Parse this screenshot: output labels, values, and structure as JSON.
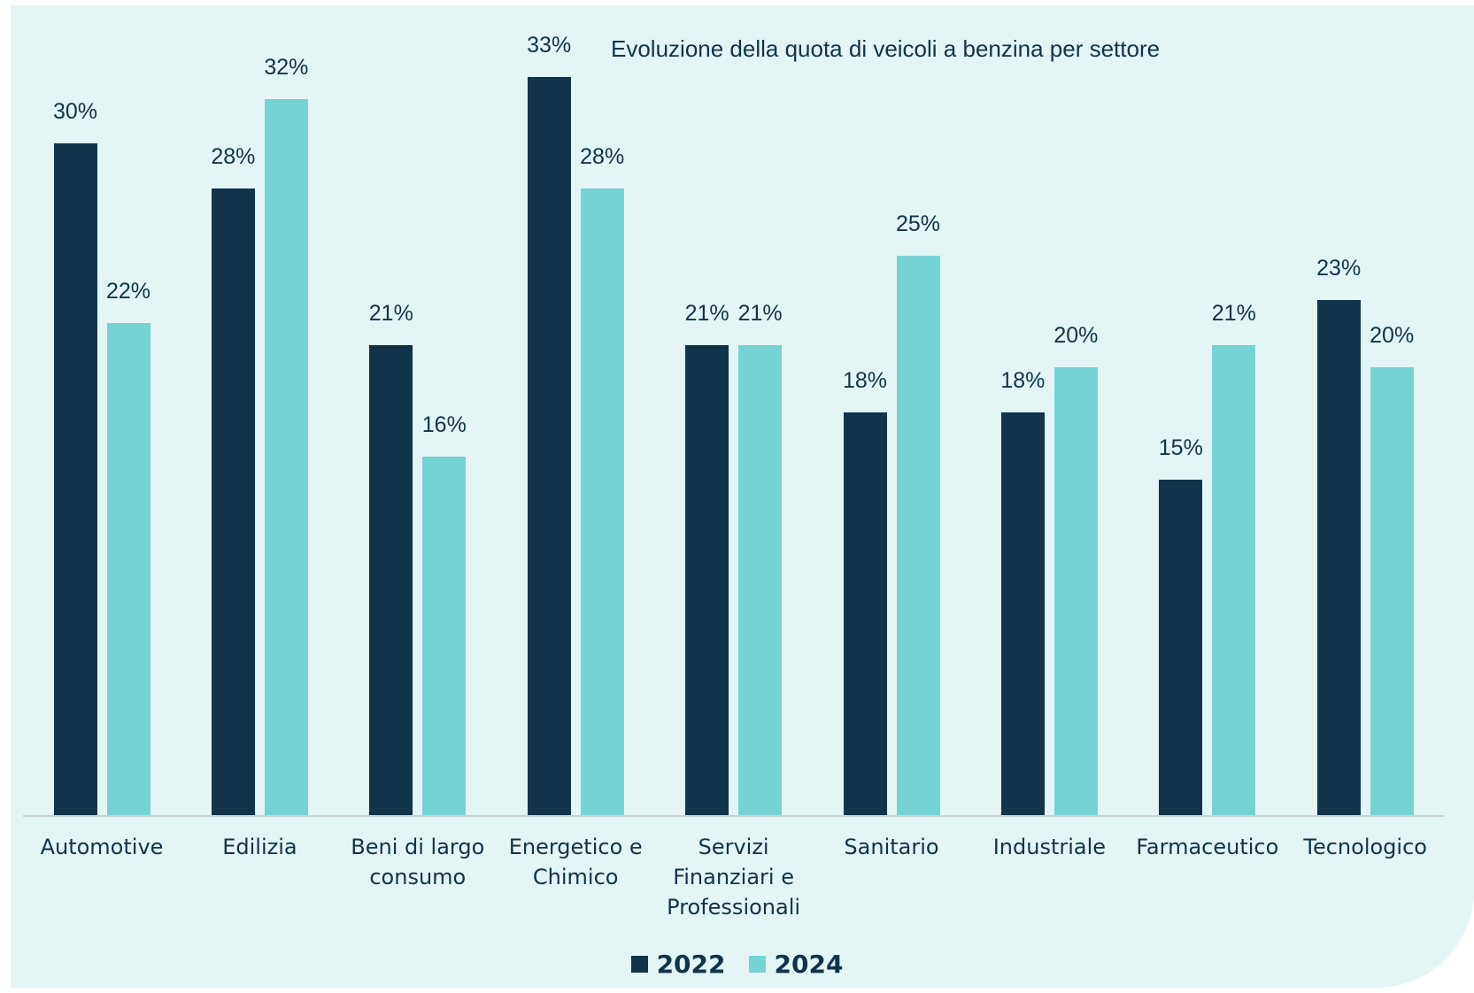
{
  "chart_data": {
    "type": "bar",
    "title": "Evoluzione della quota di veicoli a benzina per settore",
    "categories": [
      "Automotive",
      "Edilizia",
      "Beni di largo consumo",
      "Energetico e Chimico",
      "Servizi Finanziari e Professionali",
      "Sanitario",
      "Industriale",
      "Farmaceutico",
      "Tecnologico"
    ],
    "series": [
      {
        "name": "2022",
        "color": "#11344a",
        "values": [
          30,
          28,
          21,
          33,
          21,
          18,
          18,
          15,
          23
        ],
        "value_labels": [
          "30%",
          "28%",
          "21%",
          "33%",
          "21%",
          "18%",
          "18%",
          "15%",
          "23%"
        ]
      },
      {
        "name": "2024",
        "color": "#76d3d3",
        "values": [
          22,
          32,
          16,
          28,
          21,
          25,
          20,
          21,
          20
        ],
        "value_labels": [
          "22%",
          "32%",
          "16%",
          "28%",
          "21%",
          "25%",
          "20%",
          "21%",
          "20%"
        ]
      }
    ],
    "ylim": [
      0,
      35
    ],
    "legend": "bottom"
  }
}
